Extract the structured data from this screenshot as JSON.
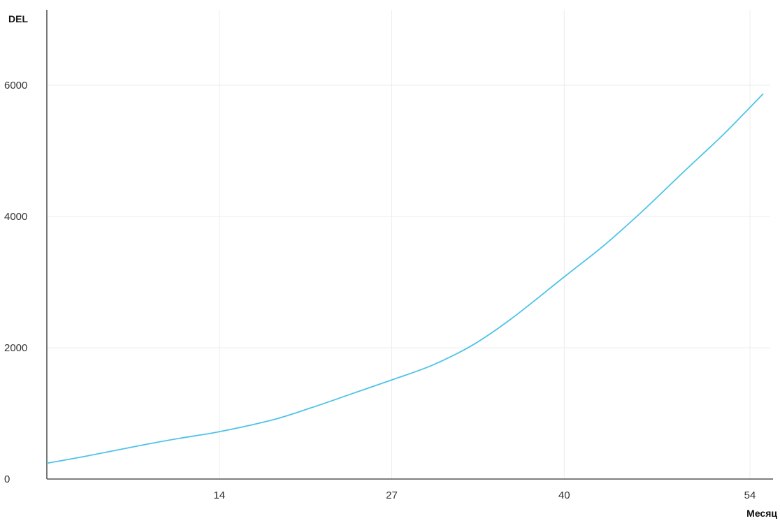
{
  "chart_data": {
    "type": "line",
    "title": "",
    "xlabel": "Месяц",
    "ylabel": "DEL",
    "grid": true,
    "legend": "none",
    "xlim": [
      1,
      55
    ],
    "ylim": [
      0,
      6000
    ],
    "x_ticks": [
      14,
      27,
      40,
      54
    ],
    "y_ticks": [
      0,
      2000,
      4000,
      6000
    ],
    "series": [
      {
        "color": "#4fc3e8",
        "x": [
          1,
          4,
          8,
          11,
          14,
          18,
          21,
          24,
          27,
          30,
          33,
          36,
          40,
          43,
          46,
          49,
          52,
          55
        ],
        "y": [
          240,
          350,
          510,
          620,
          720,
          900,
          1090,
          1300,
          1510,
          1730,
          2030,
          2440,
          3080,
          3560,
          4100,
          4680,
          5250,
          5870
        ]
      }
    ]
  }
}
